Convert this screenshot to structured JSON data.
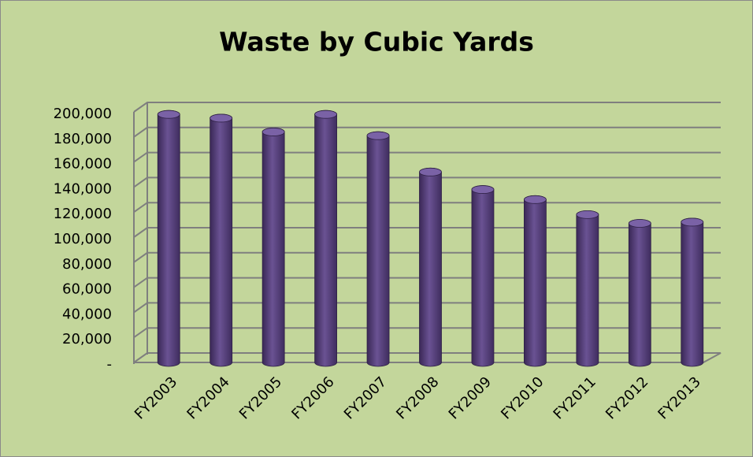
{
  "chart_data": {
    "type": "bar",
    "title": "Waste by Cubic Yards",
    "categories": [
      "FY2003",
      "FY2004",
      "FY2005",
      "FY2006",
      "FY2007",
      "FY2008",
      "FY2009",
      "FY2010",
      "FY2011",
      "FY2012",
      "FY2013"
    ],
    "values": [
      198000,
      195000,
      184000,
      198000,
      181000,
      152000,
      138000,
      130000,
      118000,
      111000,
      112000
    ],
    "color": "#5e4785",
    "ylim": [
      0,
      200000
    ],
    "yticks": [
      {
        "value": 0,
        "label": "-"
      },
      {
        "value": 20000,
        "label": "20,000"
      },
      {
        "value": 40000,
        "label": "40,000"
      },
      {
        "value": 60000,
        "label": "60,000"
      },
      {
        "value": 80000,
        "label": "80,000"
      },
      {
        "value": 100000,
        "label": "100,000"
      },
      {
        "value": 120000,
        "label": "120,000"
      },
      {
        "value": 140000,
        "label": "140,000"
      },
      {
        "value": 160000,
        "label": "160,000"
      },
      {
        "value": 180000,
        "label": "180,000"
      },
      {
        "value": 200000,
        "label": "200,000"
      }
    ],
    "grid": true
  }
}
